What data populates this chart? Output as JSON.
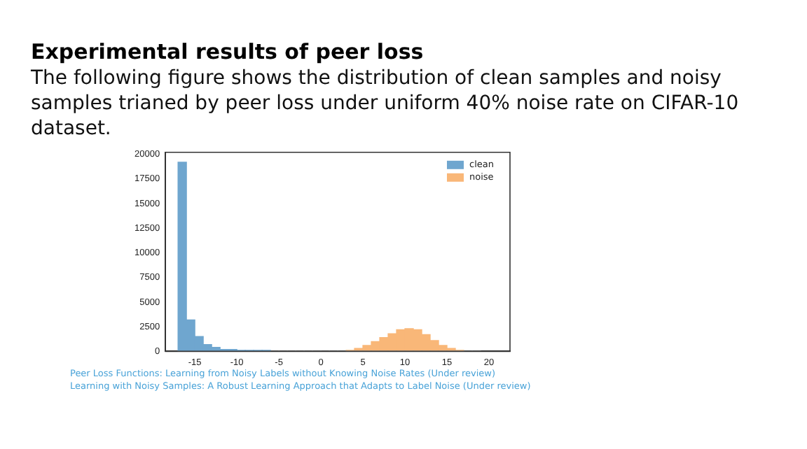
{
  "chart_data": {
    "type": "histogram",
    "title": "Experimental results of peer loss",
    "subtitle": "The following figure shows the distribution of clean samples and noisy samples trianed by peer loss under uniform 40% noise rate on CIFAR-10 dataset.",
    "bins": [
      -17,
      -16,
      -15,
      -14,
      -13,
      -12,
      -11,
      -10,
      -9,
      -8,
      -7,
      -6,
      -5,
      -4,
      -3,
      -2,
      -1,
      0,
      1,
      2,
      3,
      4,
      5,
      6,
      7,
      8,
      9,
      10,
      11,
      12,
      13,
      14,
      15,
      16,
      17,
      18,
      19
    ],
    "series": [
      {
        "name": "clean",
        "color": "#6fa6cf",
        "values": [
          19200,
          3200,
          1500,
          700,
          400,
          200,
          200,
          100,
          100,
          100,
          100,
          0,
          0,
          0,
          0,
          0,
          0,
          0,
          0,
          0,
          0,
          0,
          0,
          0,
          0,
          0,
          0,
          0,
          0,
          0,
          0,
          0,
          0,
          0,
          0,
          0
        ]
      },
      {
        "name": "noise",
        "color": "#f9b778",
        "values": [
          0,
          0,
          0,
          0,
          0,
          0,
          0,
          0,
          0,
          0,
          0,
          0,
          0,
          0,
          0,
          0,
          0,
          0,
          0,
          0,
          100,
          300,
          600,
          1000,
          1400,
          1800,
          2200,
          2300,
          2200,
          1700,
          1100,
          600,
          300,
          100,
          0,
          0
        ]
      }
    ],
    "xlim": [
      -18.5,
      22.5
    ],
    "xticks": [
      -15,
      -10,
      -5,
      0,
      5,
      10,
      15,
      20
    ],
    "ylim": [
      0,
      20200
    ],
    "yticks": [
      0,
      2500,
      5000,
      7500,
      10000,
      12500,
      15000,
      17500,
      20000
    ],
    "legend": "top right",
    "grid": false,
    "annotations": [
      "Peer Loss Functions: Learning from Noisy Labels without Knowing Noise Rates (Under review)",
      "Learning with Noisy Samples: A Robust Learning Approach that Adapts to Label Noise (Under review)"
    ]
  }
}
